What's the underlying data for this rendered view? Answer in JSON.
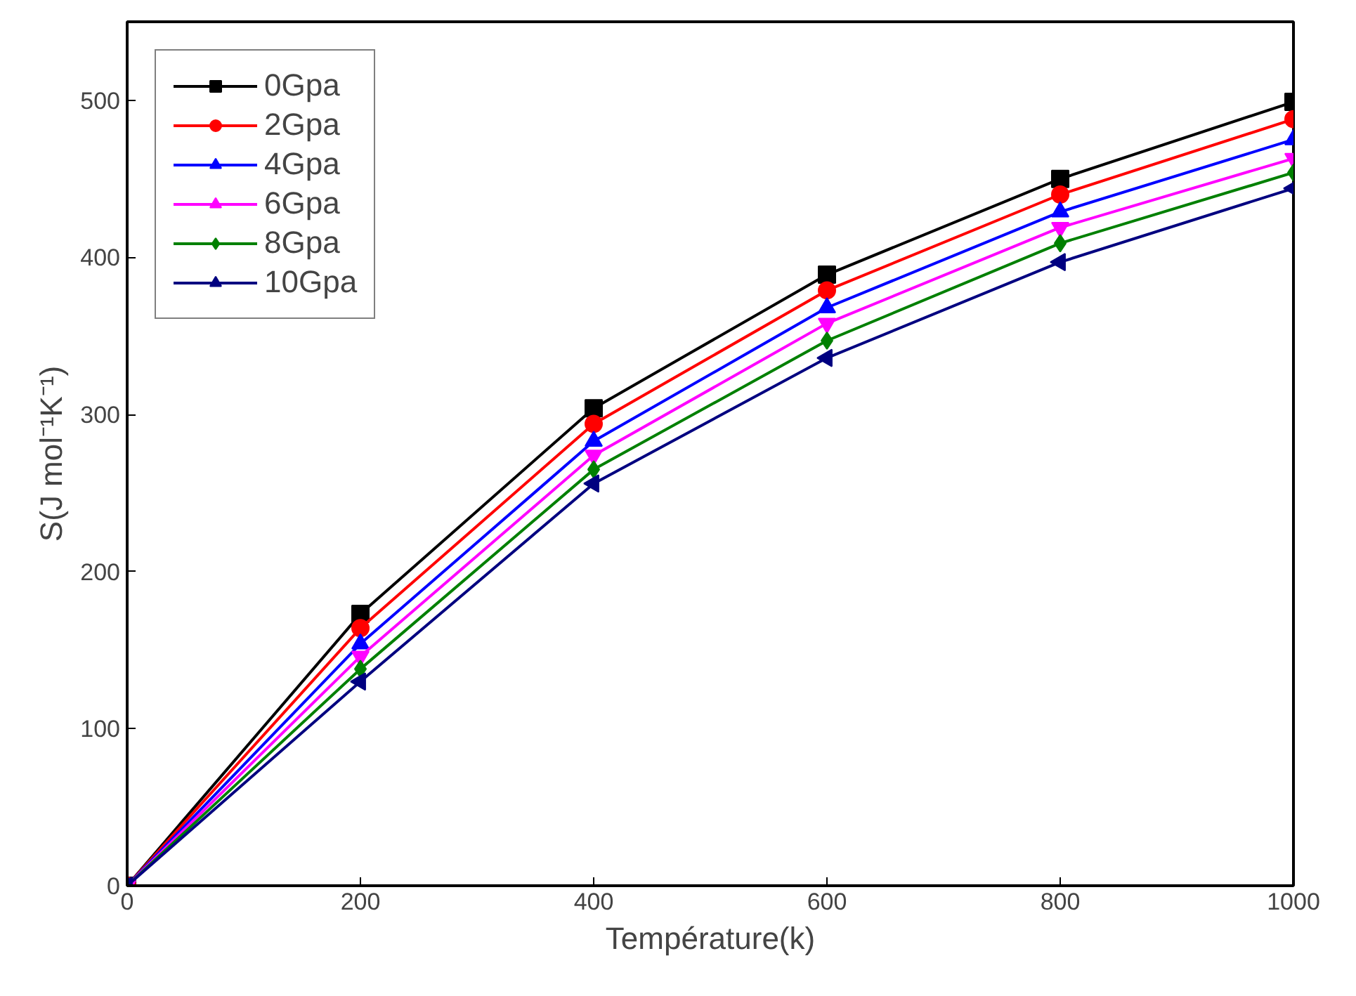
{
  "chart_data": {
    "type": "line",
    "xlabel": "Température(k)",
    "ylabel": "S(J mol⁻¹K⁻¹)",
    "x": [
      0,
      200,
      400,
      600,
      800,
      1000
    ],
    "xlim": [
      0,
      1000
    ],
    "xticks": [
      0,
      200,
      400,
      600,
      800,
      1000
    ],
    "ylim": [
      0,
      550
    ],
    "yticks": [
      0,
      100,
      200,
      300,
      400,
      500
    ],
    "grid": false,
    "legend": "top left",
    "line_style": "solid",
    "series": [
      {
        "name": "0Gpa",
        "color": "#000000",
        "marker": "square",
        "values": [
          0,
          173,
          304,
          389,
          450,
          499
        ]
      },
      {
        "name": "2Gpa",
        "color": "#ff0000",
        "marker": "circle",
        "values": [
          0,
          164,
          294,
          379,
          440,
          488
        ]
      },
      {
        "name": "4Gpa",
        "color": "#0000ff",
        "marker": "triangle",
        "values": [
          0,
          154,
          283,
          368,
          429,
          475
        ]
      },
      {
        "name": "6Gpa",
        "color": "#ff00ff",
        "marker": "triangle",
        "values": [
          0,
          146,
          274,
          358,
          419,
          463
        ]
      },
      {
        "name": "8Gpa",
        "color": "#008000",
        "marker": "diamond",
        "values": [
          0,
          138,
          265,
          347,
          409,
          454
        ]
      },
      {
        "name": "10Gpa",
        "color": "#000080",
        "marker": "triangle",
        "values": [
          0,
          130,
          256,
          336,
          397,
          444
        ]
      }
    ]
  }
}
